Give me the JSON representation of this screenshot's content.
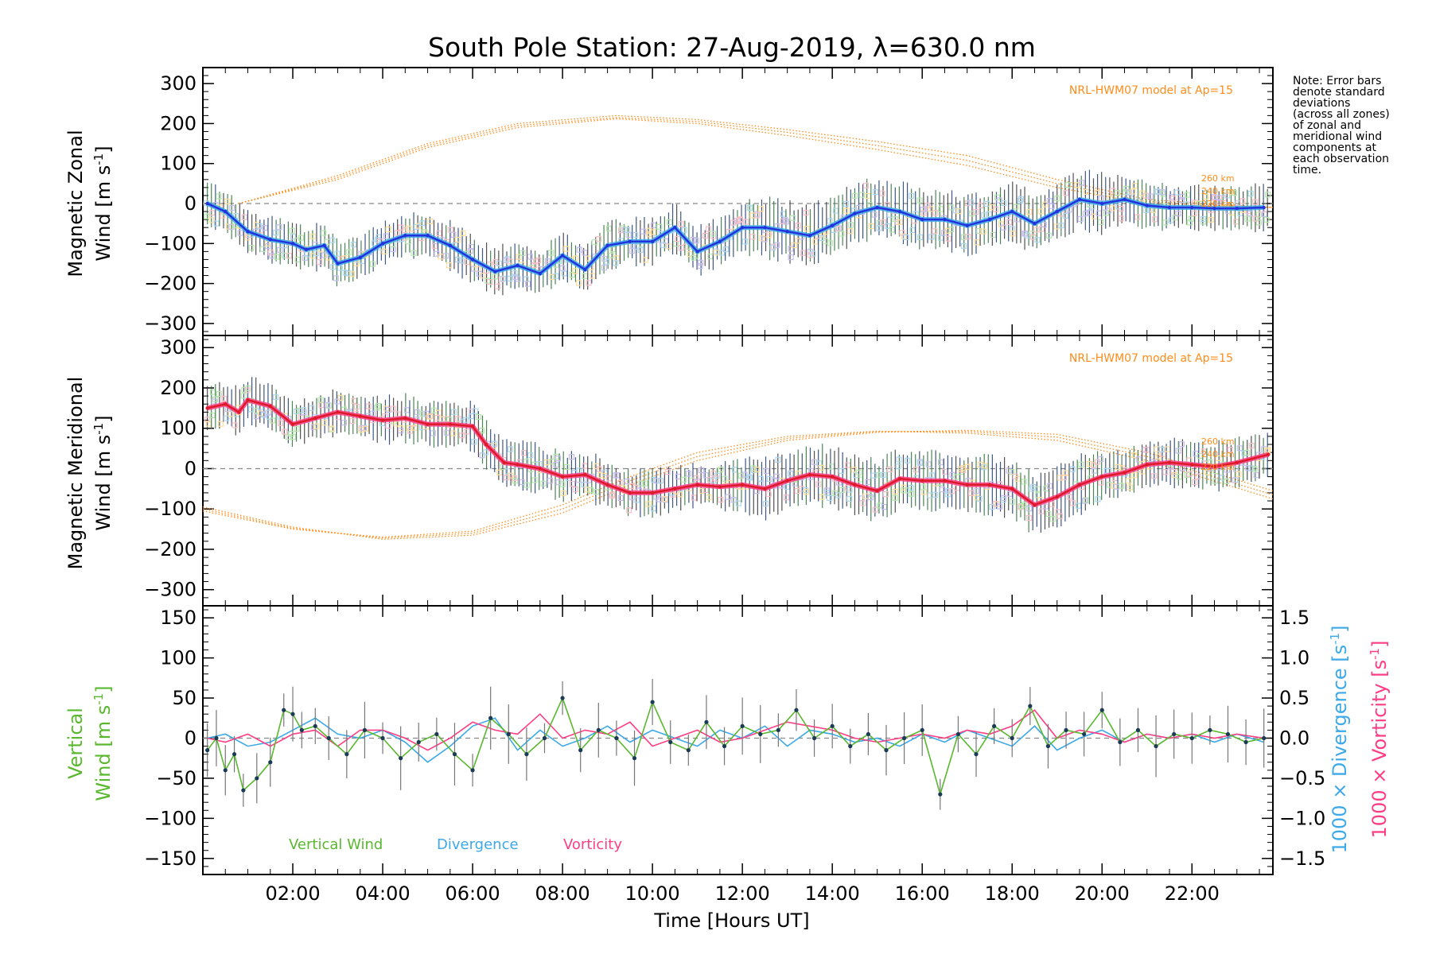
{
  "chart_data": {
    "type": "line",
    "title": "South Pole Station: 27-Aug-2019, λ=630.0 nm",
    "xlabel": "Time [Hours UT]",
    "xlim": [
      0.0,
      23.8
    ],
    "xticks": [
      {
        "v": 2,
        "label": "02:00"
      },
      {
        "v": 4,
        "label": "04:00"
      },
      {
        "v": 6,
        "label": "06:00"
      },
      {
        "v": 8,
        "label": "08:00"
      },
      {
        "v": 10,
        "label": "10:00"
      },
      {
        "v": 12,
        "label": "12:00"
      },
      {
        "v": 14,
        "label": "14:00"
      },
      {
        "v": 16,
        "label": "16:00"
      },
      {
        "v": 18,
        "label": "18:00"
      },
      {
        "v": 20,
        "label": "20:00"
      },
      {
        "v": 22,
        "label": "22:00"
      }
    ],
    "note": [
      "Note: Error bars",
      "denote standard",
      "deviations",
      "(across all zones)",
      "of zonal and",
      "meridional wind",
      "components at",
      "each observation",
      "time."
    ],
    "panels": [
      {
        "id": "zonal",
        "ylabel_top": "Magnetic Zonal",
        "ylabel_bottom": "Wind [m s",
        "ylabel_sup": "-1",
        "ylabel_end": "]",
        "ylim": [
          -330,
          340
        ],
        "yticks": [
          "300",
          "200",
          "100",
          "0",
          "−100",
          "−200",
          "−300"
        ],
        "ytick_values": [
          300,
          200,
          100,
          0,
          -100,
          -200,
          -300
        ],
        "model_label": "NRL-HWM07 model at Ap=15",
        "altitudes": [
          "260 km",
          "240 km",
          "220 km"
        ],
        "series_name": "Zonal wind",
        "color_dark": "#2233dd",
        "color_light": "#3da9e8",
        "x": [
          0.1,
          0.5,
          1.0,
          1.5,
          2.0,
          2.3,
          2.7,
          3.0,
          3.5,
          4.0,
          4.5,
          5.0,
          5.5,
          6.0,
          6.5,
          7.0,
          7.5,
          8.0,
          8.5,
          9.0,
          9.5,
          10.0,
          10.5,
          11.0,
          11.5,
          12.0,
          12.5,
          13.0,
          13.5,
          14.0,
          14.5,
          15.0,
          15.5,
          16.0,
          16.5,
          17.0,
          17.5,
          18.0,
          18.5,
          19.0,
          19.5,
          20.0,
          20.5,
          21.0,
          21.5,
          22.0,
          22.5,
          23.0,
          23.6
        ],
        "values": [
          0,
          -20,
          -70,
          -90,
          -100,
          -115,
          -105,
          -150,
          -135,
          -100,
          -80,
          -80,
          -105,
          -140,
          -170,
          -155,
          -175,
          -130,
          -165,
          -105,
          -95,
          -95,
          -60,
          -120,
          -95,
          -60,
          -60,
          -70,
          -80,
          -55,
          -25,
          -10,
          -20,
          -40,
          -40,
          -55,
          -40,
          -20,
          -50,
          -20,
          10,
          0,
          10,
          -5,
          -10,
          -10,
          -12,
          -12,
          -10
        ],
        "model_curves": [
          {
            "x": [
              0.8,
              3.0,
              5.0,
              7.0,
              9.2,
              11.0,
              13.0,
              15.0,
              17.0,
              19.0,
              21.0,
              23.8
            ],
            "y": [
              0,
              70,
              150,
              200,
              220,
              210,
              185,
              155,
              120,
              60,
              10,
              -10
            ]
          },
          {
            "x": [
              0.8,
              3.0,
              5.0,
              7.0,
              9.2,
              11.0,
              13.0,
              15.0,
              17.0,
              19.0,
              21.0,
              23.8
            ],
            "y": [
              0,
              65,
              145,
              195,
              215,
              205,
              178,
              145,
              108,
              50,
              5,
              -10
            ]
          },
          {
            "x": [
              0.8,
              3.0,
              5.0,
              7.0,
              9.2,
              11.0,
              13.0,
              15.0,
              17.0,
              19.0,
              21.0,
              23.8
            ],
            "y": [
              0,
              60,
              140,
              190,
              212,
              200,
              170,
              135,
              95,
              40,
              0,
              -10
            ]
          }
        ]
      },
      {
        "id": "meridional",
        "ylabel_top": "Magnetic Meridional",
        "ylabel_bottom": "Wind [m s",
        "ylabel_sup": "-1",
        "ylabel_end": "]",
        "ylim": [
          -340,
          330
        ],
        "yticks": [
          "300",
          "200",
          "100",
          "0",
          "−100",
          "−200",
          "−300"
        ],
        "ytick_values": [
          300,
          200,
          100,
          0,
          -100,
          -200,
          -300
        ],
        "model_label": "NRL-HWM07 model at Ap=15",
        "altitudes": [
          "260 km",
          "240 km",
          "220 km"
        ],
        "series_name": "Meridional wind",
        "color_dark": "#dd1a2a",
        "color_light": "#ff3d85",
        "x": [
          0.1,
          0.5,
          0.8,
          1.0,
          1.5,
          2.0,
          2.5,
          3.0,
          3.5,
          4.0,
          4.5,
          5.0,
          5.5,
          6.0,
          6.3,
          6.7,
          7.0,
          7.5,
          8.0,
          8.5,
          9.0,
          9.5,
          10.0,
          10.5,
          11.0,
          11.5,
          12.0,
          12.5,
          13.0,
          13.5,
          14.0,
          14.5,
          15.0,
          15.5,
          16.0,
          16.5,
          17.0,
          17.5,
          18.0,
          18.5,
          19.0,
          19.5,
          20.0,
          20.5,
          21.0,
          21.5,
          22.0,
          22.5,
          23.0,
          23.7
        ],
        "values": [
          150,
          160,
          140,
          170,
          155,
          110,
          125,
          140,
          130,
          120,
          125,
          110,
          110,
          105,
          60,
          15,
          10,
          0,
          -20,
          -15,
          -40,
          -60,
          -60,
          -50,
          -40,
          -45,
          -40,
          -50,
          -30,
          -15,
          -20,
          -40,
          -55,
          -25,
          -30,
          -30,
          -40,
          -40,
          -50,
          -90,
          -70,
          -40,
          -20,
          -10,
          10,
          15,
          10,
          5,
          15,
          35
        ],
        "model_curves": [
          {
            "x": [
              0.0,
              2.0,
              4.0,
              6.0,
              8.0,
              9.5,
              11.0,
              13.0,
              15.0,
              17.0,
              19.0,
              21.0,
              23.8
            ],
            "y": [
              -95,
              -145,
              -175,
              -165,
              -110,
              -40,
              20,
              70,
              90,
              95,
              85,
              40,
              -55
            ]
          },
          {
            "x": [
              0.0,
              2.0,
              4.0,
              6.0,
              8.0,
              9.5,
              11.0,
              13.0,
              15.0,
              17.0,
              19.0,
              21.0,
              23.8
            ],
            "y": [
              -100,
              -148,
              -172,
              -160,
              -100,
              -30,
              30,
              75,
              92,
              92,
              78,
              30,
              -65
            ]
          },
          {
            "x": [
              0.0,
              2.0,
              4.0,
              6.0,
              8.0,
              9.5,
              11.0,
              13.0,
              15.0,
              17.0,
              19.0,
              21.0,
              23.8
            ],
            "y": [
              -105,
              -150,
              -170,
              -155,
              -90,
              -20,
              40,
              80,
              93,
              88,
              70,
              20,
              -75
            ]
          }
        ]
      },
      {
        "id": "vertical",
        "ylabel_left_top": "Vertical",
        "ylabel_left_bottom": "Wind [m s",
        "ylabel_left_sup": "-1",
        "ylabel_left_end": "]",
        "ylim": [
          -170,
          165
        ],
        "yticks": [
          "150",
          "100",
          "50",
          "0",
          "−50",
          "−100",
          "−150"
        ],
        "ytick_values": [
          150,
          100,
          50,
          0,
          -50,
          -100,
          -150
        ],
        "right_ylim": [
          -1.7,
          1.65
        ],
        "right_yticks": [
          "1.5",
          "1.0",
          "0.5",
          "0.0",
          "−0.5",
          "−1.0",
          "−1.5"
        ],
        "right_ytick_values": [
          1.5,
          1.0,
          0.5,
          0.0,
          -0.5,
          -1.0,
          -1.5
        ],
        "right_label_div": "1000 × Divergence [s",
        "right_label_vort": "1000 × Vorticity [s",
        "right_label_sup": "-1",
        "right_label_end": "]",
        "legend": [
          "Vertical Wind",
          "Divergence",
          "Vorticity"
        ],
        "series": [
          {
            "name": "Vertical Wind",
            "color": "#5ab82f",
            "x": [
              0.1,
              0.3,
              0.5,
              0.7,
              0.9,
              1.2,
              1.5,
              1.8,
              2.0,
              2.2,
              2.5,
              2.8,
              3.2,
              3.6,
              4.0,
              4.4,
              4.8,
              5.2,
              5.6,
              6.0,
              6.4,
              6.8,
              7.2,
              7.6,
              8.0,
              8.4,
              8.8,
              9.2,
              9.6,
              10.0,
              10.4,
              10.8,
              11.2,
              11.6,
              12.0,
              12.4,
              12.8,
              13.2,
              13.6,
              14.0,
              14.4,
              14.8,
              15.2,
              15.6,
              16.0,
              16.4,
              16.8,
              17.2,
              17.6,
              18.0,
              18.4,
              18.8,
              19.2,
              19.6,
              20.0,
              20.4,
              20.8,
              21.2,
              21.6,
              22.0,
              22.4,
              22.8,
              23.2,
              23.6
            ],
            "values": [
              -15,
              0,
              -40,
              -20,
              -65,
              -50,
              -30,
              35,
              30,
              10,
              15,
              0,
              -20,
              10,
              0,
              -25,
              -5,
              5,
              -20,
              -40,
              25,
              5,
              -20,
              0,
              50,
              -15,
              10,
              0,
              -25,
              45,
              -5,
              -15,
              20,
              -10,
              15,
              5,
              10,
              35,
              0,
              15,
              -10,
              5,
              -15,
              0,
              10,
              -70,
              5,
              -20,
              15,
              0,
              40,
              -10,
              10,
              5,
              35,
              -5,
              10,
              -10,
              5,
              0,
              10,
              5,
              -5,
              0
            ]
          },
          {
            "name": "Divergence",
            "color": "#3da9e8",
            "x": [
              0.1,
              0.5,
              1.0,
              1.5,
              2.0,
              2.5,
              3.0,
              3.5,
              4.0,
              4.5,
              5.0,
              5.5,
              6.0,
              6.5,
              7.0,
              7.5,
              8.0,
              8.5,
              9.0,
              9.5,
              10.0,
              10.5,
              11.0,
              11.5,
              12.0,
              12.5,
              13.0,
              13.5,
              14.0,
              14.5,
              15.0,
              15.5,
              16.0,
              16.5,
              17.0,
              17.5,
              18.0,
              18.5,
              19.0,
              19.5,
              20.0,
              20.5,
              21.0,
              21.5,
              22.0,
              22.5,
              23.0,
              23.6
            ],
            "values": [
              0.0,
              0.05,
              -0.1,
              -0.05,
              0.1,
              0.25,
              0.05,
              0.0,
              0.1,
              -0.05,
              -0.3,
              -0.1,
              0.15,
              0.25,
              -0.15,
              0.1,
              -0.1,
              0.0,
              0.15,
              -0.05,
              0.1,
              0.0,
              -0.1,
              0.1,
              0.0,
              0.15,
              -0.1,
              0.1,
              0.05,
              -0.05,
              0.0,
              -0.1,
              0.05,
              -0.05,
              0.1,
              0.0,
              -0.1,
              0.15,
              -0.15,
              0.0,
              0.1,
              -0.05,
              0.05,
              0.0,
              0.05,
              -0.05,
              0.05,
              -0.05
            ]
          },
          {
            "name": "Vorticity",
            "color": "#ff3d85",
            "x": [
              0.1,
              0.5,
              1.0,
              1.5,
              2.0,
              2.5,
              3.0,
              3.5,
              4.0,
              4.5,
              5.0,
              5.5,
              6.0,
              6.5,
              7.0,
              7.5,
              8.0,
              8.5,
              9.0,
              9.5,
              10.0,
              10.5,
              11.0,
              11.5,
              12.0,
              12.5,
              13.0,
              13.5,
              14.0,
              14.5,
              15.0,
              15.5,
              16.0,
              16.5,
              17.0,
              17.5,
              18.0,
              18.5,
              19.0,
              19.5,
              20.0,
              20.5,
              21.0,
              21.5,
              22.0,
              22.5,
              23.0,
              23.6
            ],
            "values": [
              0.0,
              -0.05,
              0.05,
              -0.1,
              0.05,
              0.1,
              -0.1,
              0.1,
              0.1,
              0.0,
              -0.15,
              0.0,
              0.2,
              0.1,
              0.05,
              0.3,
              0.0,
              0.1,
              0.05,
              0.2,
              -0.1,
              0.0,
              0.1,
              -0.05,
              0.0,
              0.1,
              0.2,
              0.15,
              0.1,
              0.0,
              -0.05,
              0.0,
              0.05,
              0.0,
              0.1,
              0.05,
              0.15,
              0.35,
              0.0,
              0.1,
              0.05,
              -0.05,
              0.05,
              0.0,
              0.05,
              0.0,
              0.05,
              0.0
            ]
          }
        ]
      }
    ]
  }
}
